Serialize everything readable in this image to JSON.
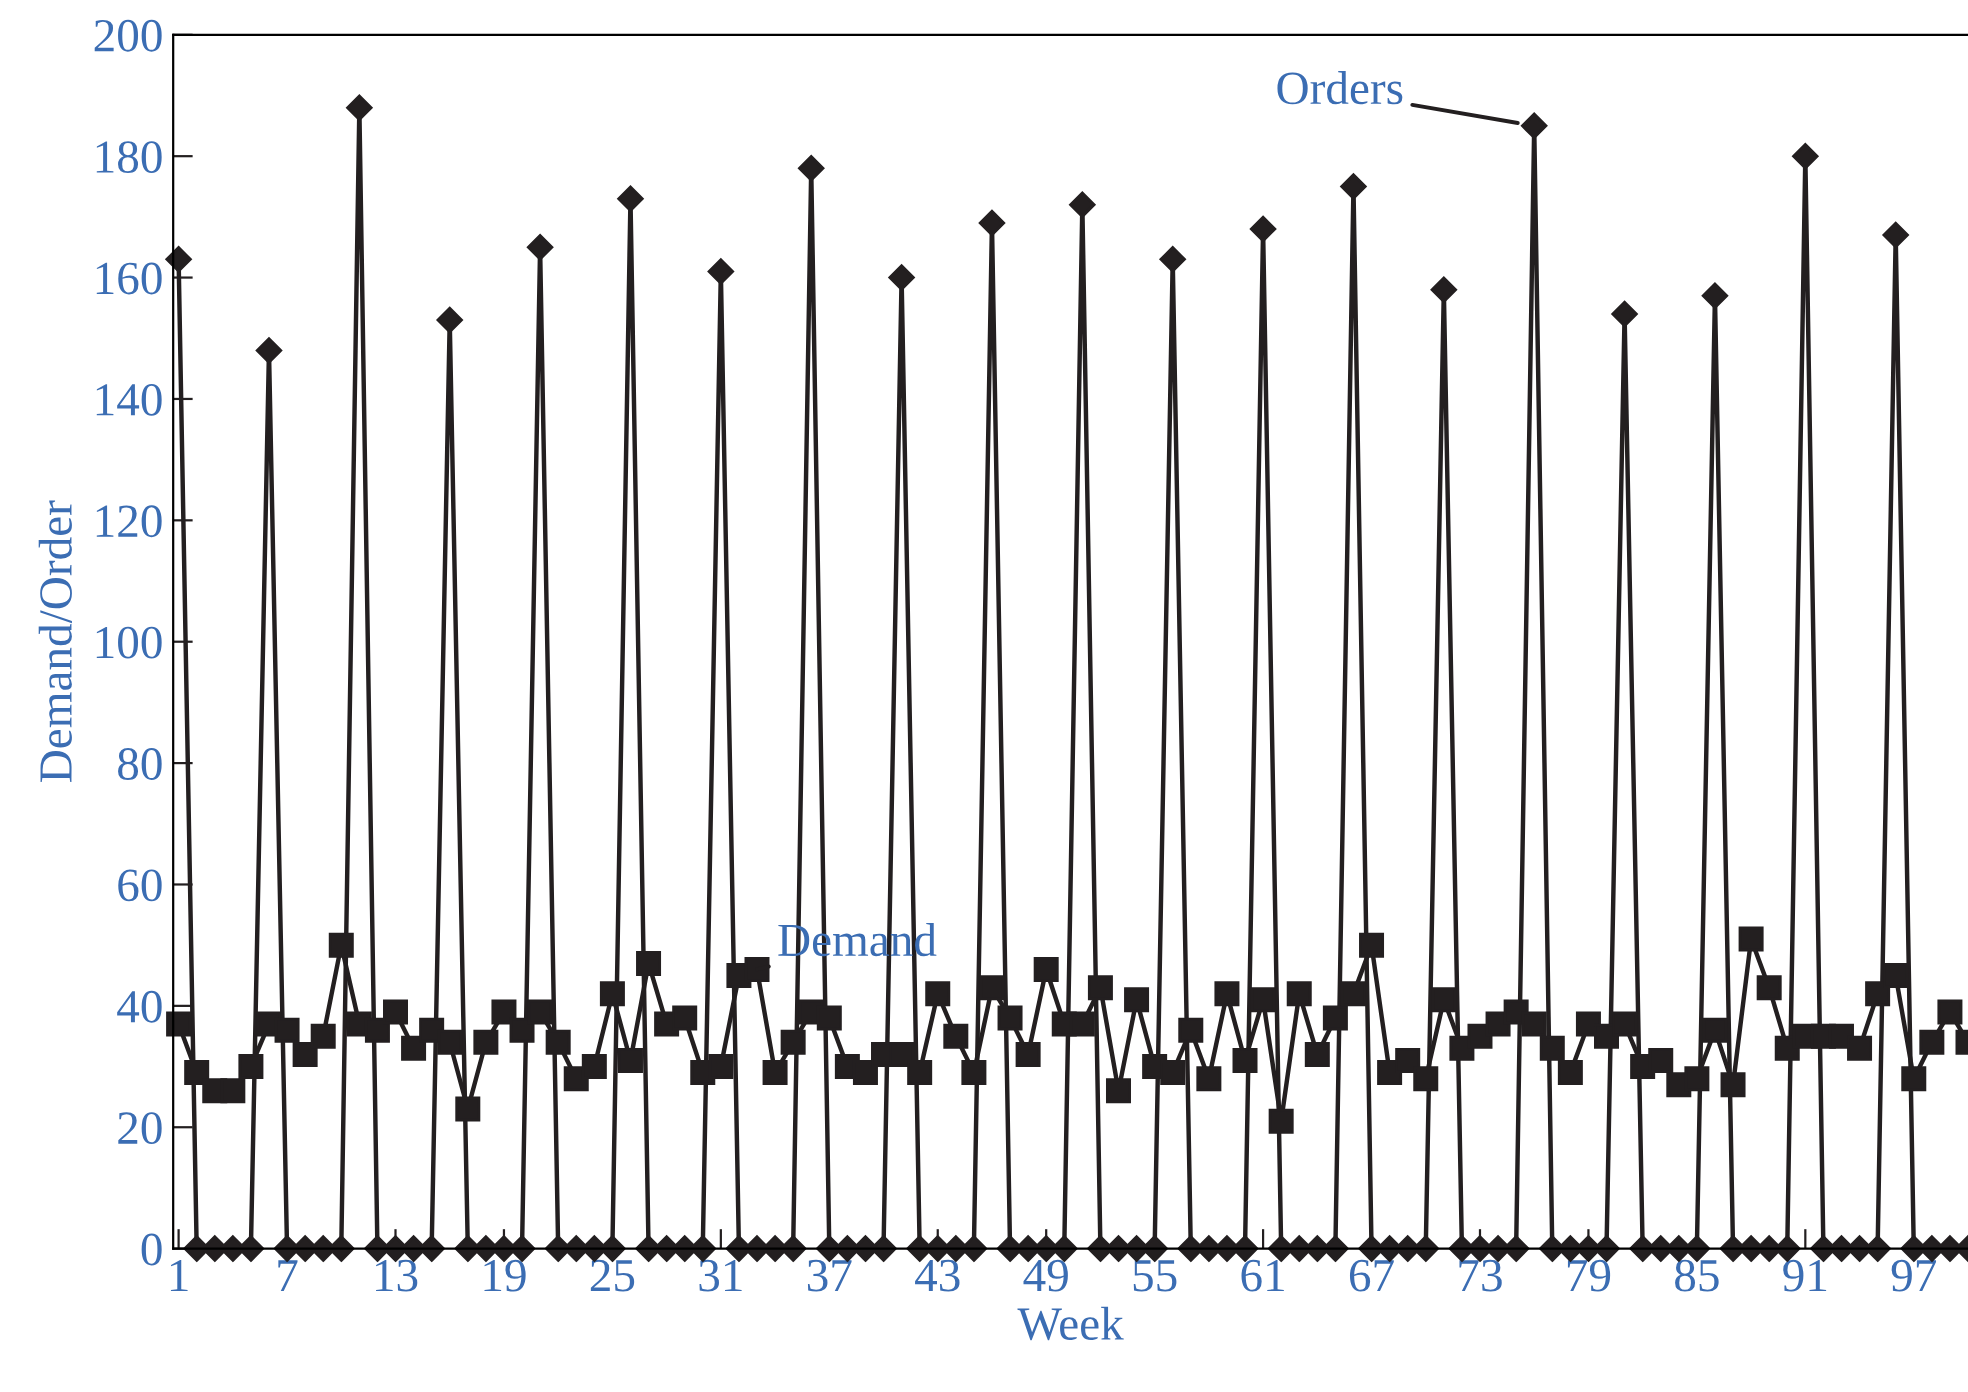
{
  "chart_data": {
    "type": "line",
    "xlabel": "Week",
    "ylabel": "Demand/Order",
    "x": [
      1,
      2,
      3,
      4,
      5,
      6,
      7,
      8,
      9,
      10,
      11,
      12,
      13,
      14,
      15,
      16,
      17,
      18,
      19,
      20,
      21,
      22,
      23,
      24,
      25,
      26,
      27,
      28,
      29,
      30,
      31,
      32,
      33,
      34,
      35,
      36,
      37,
      38,
      39,
      40,
      41,
      42,
      43,
      44,
      45,
      46,
      47,
      48,
      49,
      50,
      51,
      52,
      53,
      54,
      55,
      56,
      57,
      58,
      59,
      60,
      61,
      62,
      63,
      64,
      65,
      66,
      67,
      68,
      69,
      70,
      71,
      72,
      73,
      74,
      75,
      76,
      77,
      78,
      79,
      80,
      81,
      82,
      83,
      84,
      85,
      86,
      87,
      88,
      89,
      90,
      91,
      92,
      93,
      94,
      95,
      96,
      97,
      98,
      99,
      100
    ],
    "series": [
      {
        "name": "Orders",
        "color": "#231f20",
        "marker": "diamond",
        "values": [
          163,
          0,
          0,
          0,
          0,
          148,
          0,
          0,
          0,
          0,
          188,
          0,
          0,
          0,
          0,
          153,
          0,
          0,
          0,
          0,
          165,
          0,
          0,
          0,
          0,
          173,
          0,
          0,
          0,
          0,
          161,
          0,
          0,
          0,
          0,
          178,
          0,
          0,
          0,
          0,
          160,
          0,
          0,
          0,
          0,
          169,
          0,
          0,
          0,
          0,
          172,
          0,
          0,
          0,
          0,
          163,
          0,
          0,
          0,
          0,
          168,
          0,
          0,
          0,
          0,
          175,
          0,
          0,
          0,
          0,
          158,
          0,
          0,
          0,
          0,
          185,
          0,
          0,
          0,
          0,
          154,
          0,
          0,
          0,
          0,
          157,
          0,
          0,
          0,
          0,
          180,
          0,
          0,
          0,
          0,
          167,
          0,
          0,
          0,
          0
        ]
      },
      {
        "name": "Demand",
        "color": "#231f20",
        "marker": "square",
        "values": [
          37,
          29,
          26,
          26,
          30,
          37,
          36,
          32,
          35,
          50,
          37,
          36,
          39,
          33,
          36,
          34,
          23,
          34,
          39,
          36,
          39,
          34,
          28,
          30,
          42,
          31,
          47,
          37,
          38,
          29,
          30,
          45,
          46,
          29,
          34,
          39,
          38,
          30,
          29,
          32,
          32,
          29,
          42,
          35,
          29,
          43,
          38,
          32,
          46,
          37,
          37,
          43,
          26,
          41,
          30,
          29,
          36,
          28,
          42,
          31,
          41,
          21,
          42,
          32,
          38,
          42,
          50,
          29,
          31,
          28,
          41,
          33,
          35,
          37,
          39,
          37,
          33,
          29,
          37,
          35,
          37,
          30,
          31,
          27,
          28,
          36,
          27,
          51,
          43,
          33,
          35,
          35,
          35,
          33,
          42,
          45,
          28,
          34,
          39,
          34
        ]
      }
    ],
    "xlim": [
      0.7,
      100
    ],
    "ylim": [
      0,
      200
    ],
    "xticks": [
      1,
      7,
      13,
      19,
      25,
      31,
      37,
      43,
      49,
      55,
      61,
      67,
      73,
      79,
      85,
      91,
      97
    ],
    "yticks": [
      0,
      20,
      40,
      60,
      80,
      100,
      120,
      140,
      160,
      180,
      200
    ],
    "grid": false
  }
}
